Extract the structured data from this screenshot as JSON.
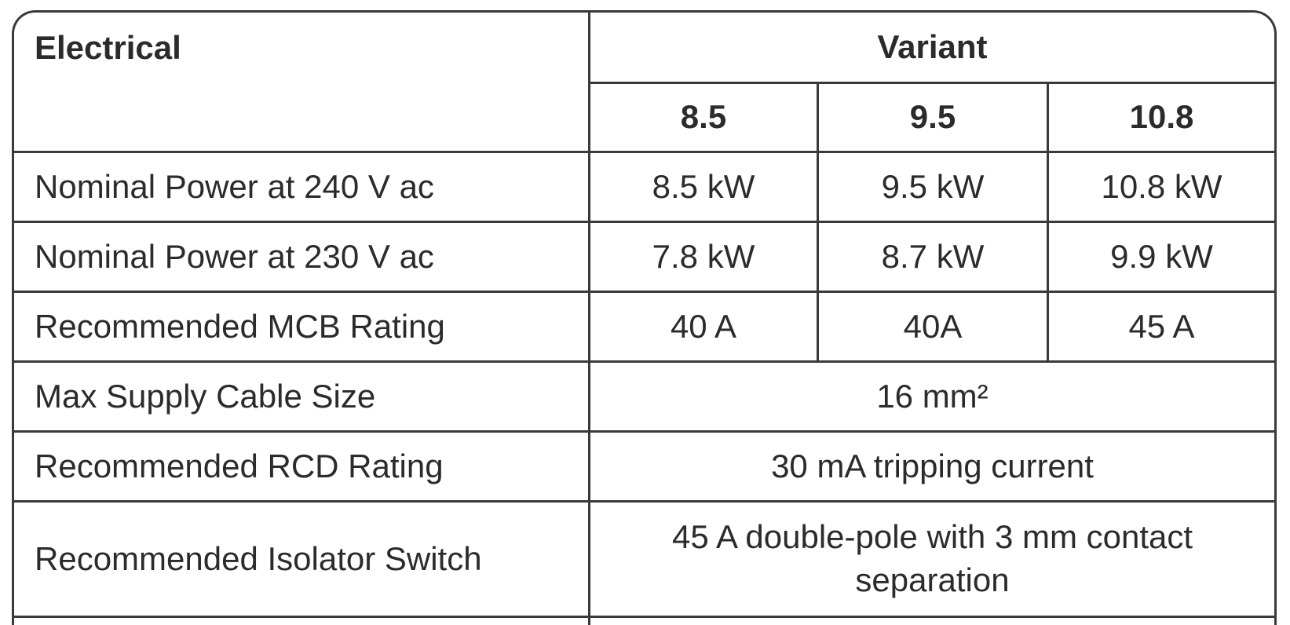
{
  "header": {
    "title": "Electrical",
    "group": "Variant",
    "variants": [
      "8.5",
      "9.5",
      "10.8"
    ]
  },
  "table": {
    "rows": [
      {
        "label": "Nominal Power at 240 V ac",
        "values": [
          "8.5 kW",
          "9.5 kW",
          "10.8 kW"
        ]
      },
      {
        "label": "Nominal Power at 230 V ac",
        "values": [
          "7.8 kW",
          "8.7 kW",
          "9.9 kW"
        ]
      },
      {
        "label": "Recommended MCB Rating",
        "values": [
          "40 A",
          "40A",
          "45 A"
        ]
      },
      {
        "label": "Max Supply Cable Size",
        "value": "16 mm²"
      },
      {
        "label": "Recommended RCD Rating",
        "value": "30 mA tripping current"
      },
      {
        "label": "Recommended Isolator Switch",
        "value": "45 A double-pole with 3 mm contact separation"
      }
    ]
  }
}
